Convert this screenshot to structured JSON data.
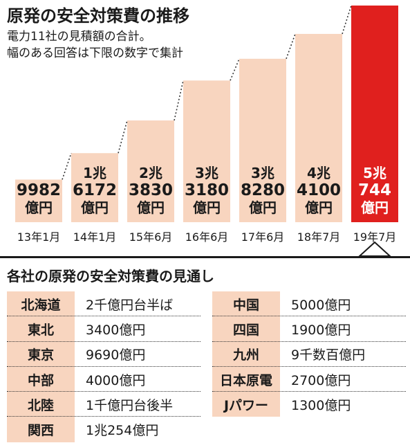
{
  "title": "原発の安全対策費の推移",
  "subtitle_line1": "電力11社の見積額の合計。",
  "subtitle_line2": "幅のある回答は下限の数字で集計",
  "colors": {
    "bar": "#f8d5bf",
    "highlight": "#e0201e",
    "table_bg": "#f8d5bf"
  },
  "chart_data": {
    "type": "bar",
    "title": "原発の安全対策費の推移",
    "categories": [
      "13年1月",
      "14年1月",
      "15年6月",
      "16年6月",
      "17年6月",
      "18年7月",
      "19年7月"
    ],
    "values": [
      9982,
      16172,
      23830,
      33180,
      38280,
      44100,
      50744
    ],
    "unit": "億円",
    "labels": [
      [
        "9982",
        "億円"
      ],
      [
        "1兆",
        "6172",
        "億円"
      ],
      [
        "2兆",
        "3830",
        "億円"
      ],
      [
        "3兆",
        "3180",
        "億円"
      ],
      [
        "3兆",
        "8280",
        "億円"
      ],
      [
        "4兆",
        "4100",
        "億円"
      ],
      [
        "5兆",
        "744",
        "億円"
      ]
    ],
    "highlight_index": 6,
    "ylim": [
      0,
      50744
    ],
    "grid": false,
    "legend": "none"
  },
  "table_title": "各社の原発の安全対策費の見通し",
  "table_left": [
    {
      "name": "北海道",
      "value": "2千億円台半ば"
    },
    {
      "name": "東北",
      "value": "3400億円"
    },
    {
      "name": "東京",
      "value": "9690億円"
    },
    {
      "name": "中部",
      "value": "4000億円"
    },
    {
      "name": "北陸",
      "value": "1千億円台後半"
    },
    {
      "name": "関西",
      "value": "1兆254億円"
    }
  ],
  "table_right": [
    {
      "name": "中国",
      "value": "5000億円"
    },
    {
      "name": "四国",
      "value": "1900億円"
    },
    {
      "name": "九州",
      "value": "9千数百億円"
    },
    {
      "name": "日本原電",
      "value": "2700億円"
    },
    {
      "name": "Jパワー",
      "value": "1300億円"
    }
  ]
}
